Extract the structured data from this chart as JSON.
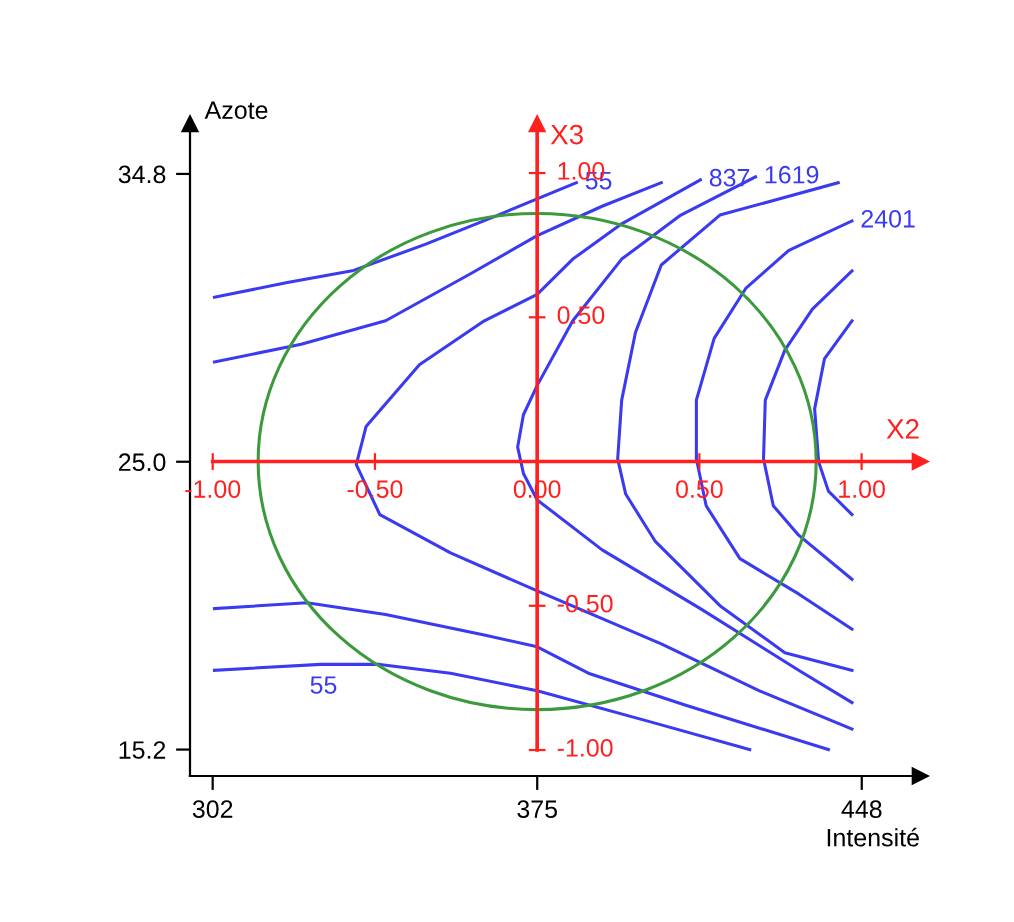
{
  "chart_data": {
    "type": "line",
    "xlabel": "Intensité",
    "ylabel": "Azote",
    "x2label": "X2",
    "y2label": "X3",
    "xlim": [
      296.9,
      461.1
    ],
    "ylim": [
      14.3,
      36.5
    ],
    "xticks": [
      302,
      375,
      448
    ],
    "yticks": [
      {
        "value": 15.2,
        "label": "15.2"
      },
      {
        "value": 25.0,
        "label": "25.0"
      },
      {
        "value": 34.8,
        "label": "34.8"
      }
    ],
    "x2lim": [
      -1.07,
      1.18
    ],
    "y2lim": [
      -1.09,
      1.17
    ],
    "x2ticks": [
      {
        "value": -1,
        "label": "-1.00"
      },
      {
        "value": -0.5,
        "label": "-0.50"
      },
      {
        "value": 0,
        "label": "0.00"
      },
      {
        "value": 0.5,
        "label": "0.50"
      },
      {
        "value": 1,
        "label": "1.00"
      }
    ],
    "y2ticks": [
      {
        "value": -1,
        "label": "-1.00"
      },
      {
        "value": -0.5,
        "label": "-0.50"
      },
      {
        "value": 0.5,
        "label": "0.50"
      },
      {
        "value": 1,
        "label": "1.00"
      }
    ],
    "grid": false,
    "series": [
      {
        "color": "#3a3af0",
        "x": [
          302.4,
          318.8,
          333.4,
          349.8,
          366.2,
          383.8
        ],
        "values": [
          30.6,
          31.1,
          31.5,
          32.4,
          33.4,
          34.5
        ]
      },
      {
        "color": "#3a3af0",
        "x": [
          302.4,
          321.9,
          340.9,
          360.0,
          375,
          389.6,
          402.9
        ],
        "values": [
          28.4,
          29.0,
          29.8,
          31.4,
          32.7,
          33.7,
          34.5
        ]
      },
      {
        "color": "#3a3af0",
        "x": [
          411.7,
          394.0,
          383.0,
          375,
          363.1,
          348.5,
          336.5,
          334.3,
          339.6,
          355.5,
          375,
          402.9,
          425.0,
          445.8
        ],
        "values": [
          34.6,
          33.1,
          31.9,
          30.7,
          29.8,
          28.3,
          26.2,
          24.9,
          23.2,
          21.9,
          20.6,
          18.8,
          17.2,
          15.9
        ]
      },
      {
        "color": "#3a3af0",
        "x": [
          424.1,
          407.3,
          394.0,
          383.0,
          375,
          371.9,
          370.6,
          371.9,
          375,
          389.6,
          411.7,
          433.8,
          445.8
        ],
        "values": [
          34.7,
          33.4,
          31.9,
          29.8,
          27.6,
          26.6,
          25.5,
          24.6,
          23.7,
          22.0,
          20.0,
          17.9,
          16.8
        ]
      },
      {
        "color": "#3a3af0",
        "x": [
          442.7,
          416.1,
          402.9,
          397.1,
          394.0,
          393.1,
          394.9,
          401.5,
          416.1,
          430.7,
          445.8
        ],
        "values": [
          34.5,
          33.4,
          31.7,
          29.4,
          27.1,
          25.1,
          23.9,
          22.3,
          20.1,
          18.5,
          17.9
        ]
      },
      {
        "color": "#3a3af0",
        "x": [
          445.8,
          431.6,
          421.9,
          414.8,
          410.8,
          410.8,
          413.0,
          420.6,
          433.8,
          445.8
        ],
        "values": [
          33.2,
          32.2,
          30.9,
          29.2,
          27.1,
          25.1,
          23.5,
          21.7,
          20.5,
          19.3
        ]
      },
      {
        "color": "#3a3af0",
        "x": [
          445.8,
          436.9,
          430.7,
          426.3,
          425.9,
          428.1,
          433.8,
          445.8
        ],
        "values": [
          31.5,
          30.2,
          28.8,
          27.1,
          25.1,
          23.5,
          22.5,
          21.0
        ]
      },
      {
        "color": "#3a3af0",
        "x": [
          445.8,
          439.6,
          437.4,
          438.3,
          440.5,
          445.8
        ],
        "values": [
          29.8,
          28.5,
          26.8,
          25.0,
          24.0,
          23.2
        ]
      },
      {
        "color": "#3a3af0",
        "x": [
          302.4,
          323.2,
          340.9,
          363.1,
          375,
          386.5,
          408.6,
          440.5
        ],
        "values": [
          20.0,
          20.2,
          19.8,
          19.1,
          18.7,
          17.8,
          16.7,
          15.2
        ]
      },
      {
        "color": "#3a3af0",
        "x": [
          302.4,
          326.3,
          339.6,
          355.5,
          375,
          401.5,
          422.8
        ],
        "values": [
          17.9,
          18.1,
          18.1,
          17.8,
          17.2,
          16.1,
          15.2
        ]
      }
    ],
    "annotations": [
      {
        "text": "55",
        "x": 383.8,
        "y": 34.5
      },
      {
        "text": "837",
        "x": 411.7,
        "y": 34.6
      },
      {
        "text": "1619",
        "x": 424.1,
        "y": 34.7
      },
      {
        "text": "2401",
        "x": 445.8,
        "y": 33.2
      },
      {
        "text": "55",
        "x": 326.3,
        "y": 18.1
      }
    ]
  }
}
